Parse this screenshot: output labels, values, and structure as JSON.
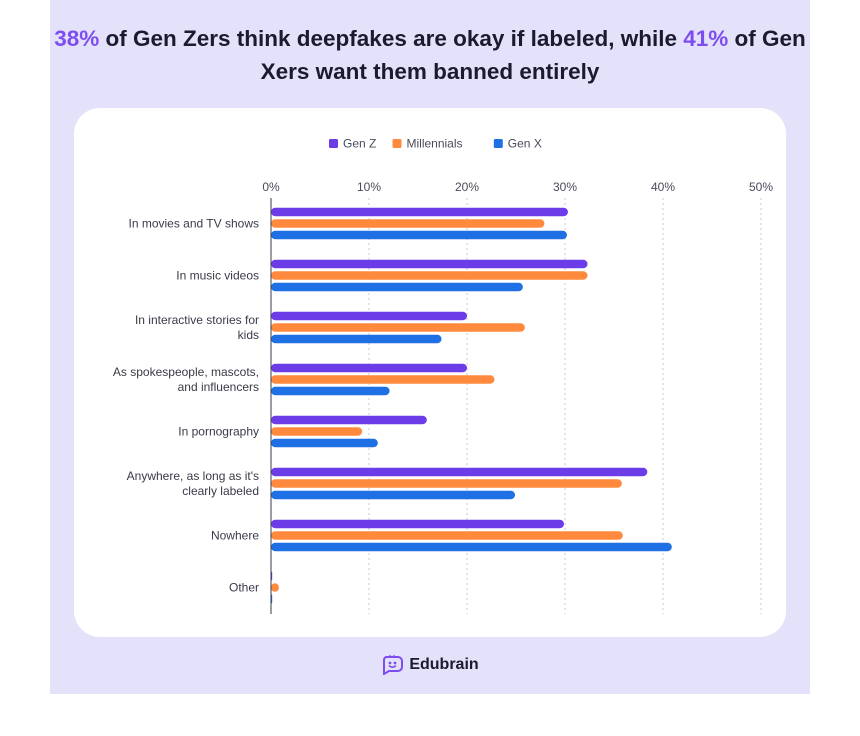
{
  "headline": {
    "hl1": "38%",
    "text1": " of Gen Zers think deepfakes are okay if labeled, while ",
    "hl2": "41%",
    "text2": " of Gen Xers want them banned entirely"
  },
  "brand": {
    "name": "Edubrain",
    "icon": "edubrain-logo-icon"
  },
  "colors": {
    "genz": "#6c3ce9",
    "millennials": "#ff8a3d",
    "genx": "#1f6fe5",
    "accent": "#7c4df0"
  },
  "chart_data": {
    "type": "bar",
    "orientation": "horizontal",
    "title": "",
    "xlabel": "",
    "ylabel": "",
    "xlim": [
      0,
      50
    ],
    "ticks": [
      "0%",
      "10%",
      "20%",
      "30%",
      "40%",
      "50%"
    ],
    "legend_position": "top",
    "grid": true,
    "categories": [
      [
        "In movies and TV shows"
      ],
      [
        "In music videos"
      ],
      [
        "In interactive stories for",
        "kids"
      ],
      [
        "As spokespeople, mascots,",
        "and influencers"
      ],
      [
        "In pornography"
      ],
      [
        "Anywhere, as long as it's",
        "clearly labeled"
      ],
      [
        "Nowhere"
      ],
      [
        "Other"
      ]
    ],
    "series": [
      {
        "name": "Gen Z",
        "color": "#6c3ce9",
        "values": [
          30.3,
          32.3,
          20,
          20,
          15.9,
          38.4,
          29.9,
          0.1
        ]
      },
      {
        "name": "Millennials",
        "color": "#ff8a3d",
        "values": [
          27.9,
          32.3,
          25.9,
          22.8,
          9.3,
          35.8,
          35.9,
          0.8
        ]
      },
      {
        "name": "Gen X",
        "color": "#1f6fe5",
        "values": [
          30.2,
          25.7,
          17.4,
          12.1,
          10.9,
          24.9,
          40.9,
          0.1
        ]
      }
    ]
  }
}
